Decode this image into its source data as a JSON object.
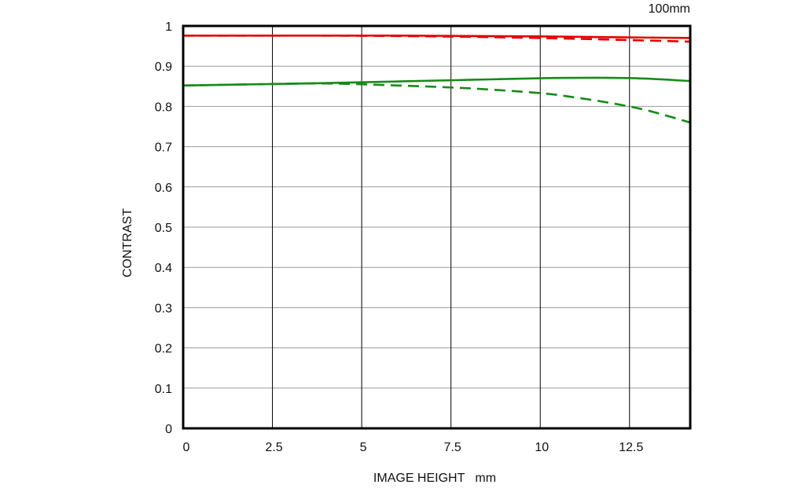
{
  "chart_data": {
    "type": "line",
    "title": "100mm",
    "xlabel": "IMAGE HEIGHT   mm",
    "ylabel": "CONTRAST",
    "xlim": [
      0,
      14.2
    ],
    "ylim": [
      0,
      1
    ],
    "x_ticks": [
      0,
      2.5,
      5,
      7.5,
      10,
      12.5
    ],
    "x_tick_labels": [
      "0",
      "2.5",
      "5",
      "7.5",
      "10",
      "12.5"
    ],
    "y_ticks": [
      0,
      0.1,
      0.2,
      0.3,
      0.4,
      0.5,
      0.6,
      0.7,
      0.8,
      0.9,
      1
    ],
    "y_tick_labels": [
      "0",
      "0.1",
      "0.2",
      "0.3",
      "0.4",
      "0.5",
      "0.6",
      "0.7",
      "0.8",
      "0.9",
      "1"
    ],
    "grid": true,
    "series": [
      {
        "color": "#e60000",
        "dash": "solid",
        "x": [
          0,
          2,
          4,
          6,
          8,
          10,
          12,
          14.2
        ],
        "values": [
          0.976,
          0.976,
          0.976,
          0.976,
          0.975,
          0.974,
          0.972,
          0.97
        ]
      },
      {
        "color": "#e60000",
        "dash": "dashed",
        "x": [
          0,
          2,
          4,
          6,
          8,
          10,
          12,
          14.2
        ],
        "values": [
          0.976,
          0.976,
          0.976,
          0.975,
          0.973,
          0.97,
          0.966,
          0.961
        ]
      },
      {
        "color": "#178a17",
        "dash": "solid",
        "x": [
          0,
          2,
          4,
          6,
          8,
          10,
          11,
          12,
          13,
          14.2
        ],
        "values": [
          0.852,
          0.855,
          0.858,
          0.862,
          0.866,
          0.87,
          0.871,
          0.871,
          0.869,
          0.863
        ]
      },
      {
        "color": "#178a17",
        "dash": "dashed",
        "x": [
          0,
          2,
          4,
          6,
          8,
          10,
          11,
          12,
          13,
          14.2
        ],
        "values": [
          0.852,
          0.855,
          0.857,
          0.852,
          0.845,
          0.833,
          0.822,
          0.808,
          0.79,
          0.76
        ]
      }
    ]
  }
}
